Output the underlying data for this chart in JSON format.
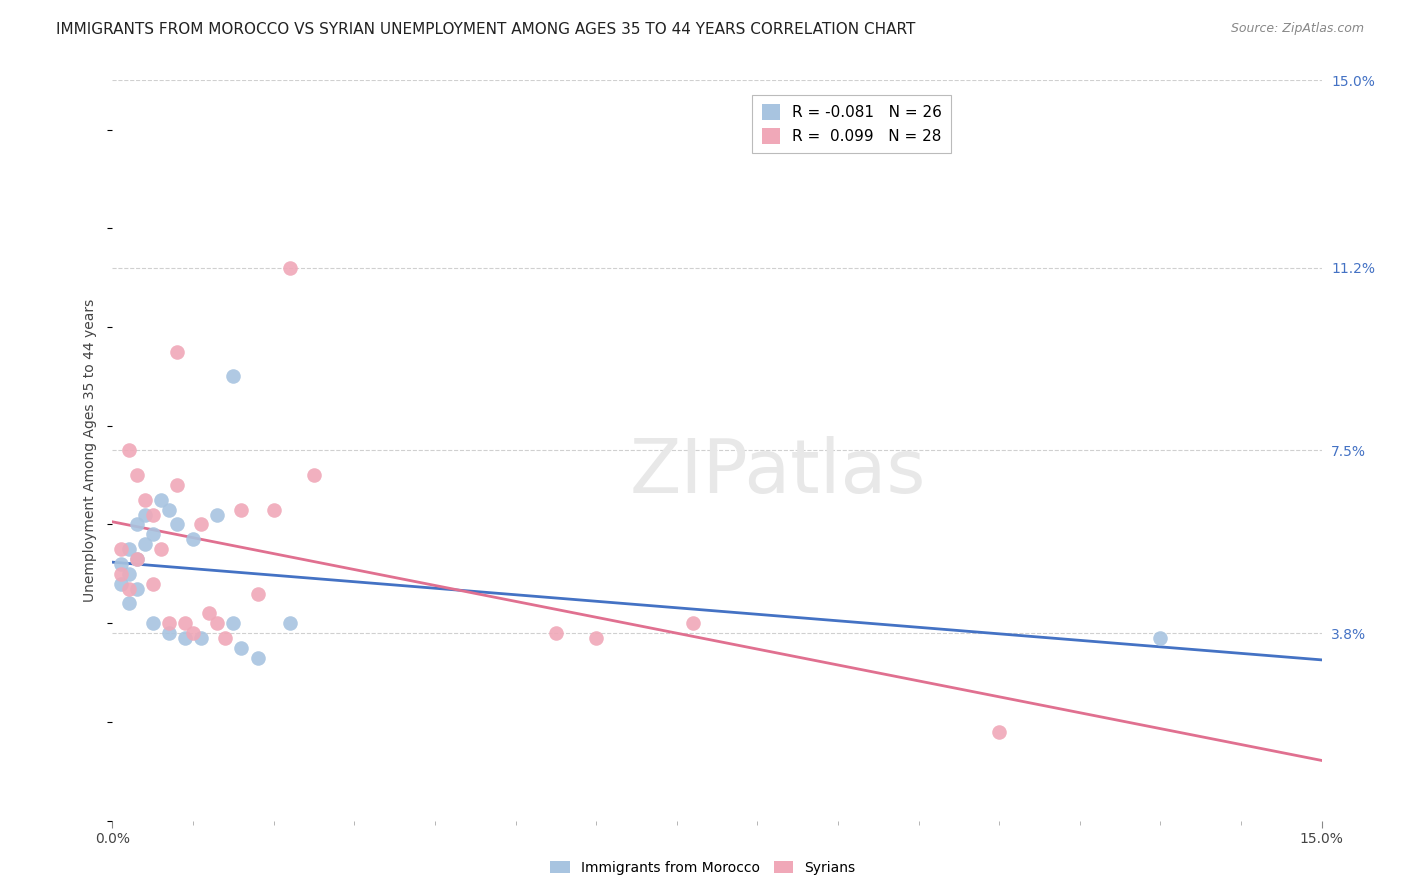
{
  "title": "IMMIGRANTS FROM MOROCCO VS SYRIAN UNEMPLOYMENT AMONG AGES 35 TO 44 YEARS CORRELATION CHART",
  "source": "Source: ZipAtlas.com",
  "ylabel": "Unemployment Among Ages 35 to 44 years",
  "xlim": [
    0.0,
    0.15
  ],
  "ylim": [
    0.0,
    0.15
  ],
  "ytick_labels_right": [
    "15.0%",
    "11.2%",
    "7.5%",
    "3.8%"
  ],
  "ytick_positions_right": [
    0.15,
    0.112,
    0.075,
    0.038
  ],
  "grid_color": "#d0d0d0",
  "background_color": "#ffffff",
  "watermark_text": "ZIPatlas",
  "watermark_color": "#e8e8e8",
  "legend_label1": "R = -0.081   N = 26",
  "legend_label2": "R =  0.099   N = 28",
  "morocco_color": "#a8c4e0",
  "syria_color": "#f0a8b8",
  "regression_blue": "#4472c4",
  "regression_pink": "#e07090",
  "morocco_x": [
    0.001,
    0.001,
    0.002,
    0.002,
    0.002,
    0.003,
    0.003,
    0.003,
    0.004,
    0.004,
    0.005,
    0.005,
    0.006,
    0.007,
    0.007,
    0.008,
    0.009,
    0.01,
    0.011,
    0.013,
    0.015,
    0.016,
    0.018,
    0.022,
    0.015,
    0.13
  ],
  "morocco_y": [
    0.048,
    0.052,
    0.044,
    0.05,
    0.055,
    0.047,
    0.053,
    0.06,
    0.056,
    0.062,
    0.058,
    0.04,
    0.065,
    0.063,
    0.038,
    0.06,
    0.037,
    0.057,
    0.037,
    0.062,
    0.04,
    0.035,
    0.033,
    0.04,
    0.09,
    0.037
  ],
  "syria_x": [
    0.001,
    0.001,
    0.002,
    0.002,
    0.003,
    0.003,
    0.004,
    0.005,
    0.005,
    0.006,
    0.007,
    0.008,
    0.008,
    0.009,
    0.01,
    0.011,
    0.012,
    0.013,
    0.014,
    0.016,
    0.018,
    0.02,
    0.022,
    0.025,
    0.055,
    0.06,
    0.072,
    0.11
  ],
  "syria_y": [
    0.05,
    0.055,
    0.047,
    0.075,
    0.053,
    0.07,
    0.065,
    0.048,
    0.062,
    0.055,
    0.04,
    0.068,
    0.095,
    0.04,
    0.038,
    0.06,
    0.042,
    0.04,
    0.037,
    0.063,
    0.046,
    0.063,
    0.112,
    0.07,
    0.038,
    0.037,
    0.04,
    0.018
  ],
  "title_fontsize": 11,
  "source_fontsize": 9,
  "legend_fontsize": 11,
  "axis_label_fontsize": 10,
  "tick_fontsize": 10,
  "right_tick_color": "#4472c4"
}
